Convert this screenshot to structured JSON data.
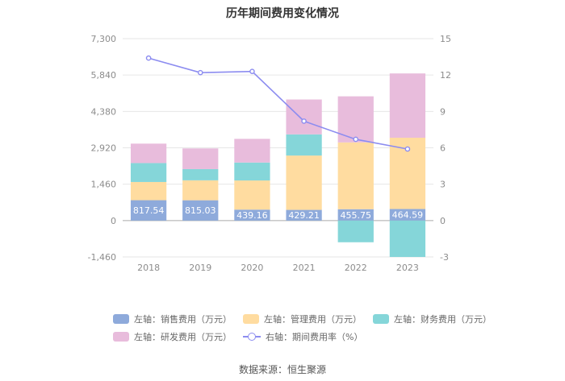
{
  "title": "历年期间费用变化情况",
  "source": "数据来源：恒生聚源",
  "chart_data": {
    "type": "bar",
    "stacked": true,
    "categories": [
      "2018",
      "2019",
      "2020",
      "2021",
      "2022",
      "2023"
    ],
    "left_axis": {
      "ticks": [
        -1460,
        0,
        1460,
        2920,
        4380,
        5840,
        7300
      ],
      "tick_labels": [
        "-1,460",
        "0",
        "1,460",
        "2,920",
        "4,380",
        "5,840",
        "7,300"
      ],
      "ylim": [
        -1460,
        7300
      ]
    },
    "right_axis": {
      "ticks": [
        -3,
        0,
        3,
        6,
        9,
        12,
        15
      ],
      "tick_labels": [
        "-3",
        "0",
        "3",
        "6",
        "9",
        "12",
        "15"
      ],
      "ylim": [
        -3,
        15
      ]
    },
    "series": [
      {
        "name": "左轴：销售费用（万元）",
        "axis": "left",
        "color": "#8eaadb",
        "values": [
          817.54,
          815.03,
          439.16,
          429.21,
          455.75,
          464.59
        ],
        "labels": [
          "817.54",
          "815.03",
          "439.16",
          "429.21",
          "455.75",
          "464.59"
        ]
      },
      {
        "name": "左轴：管理费用（万元）",
        "axis": "left",
        "color": "#ffdca0",
        "values": [
          730,
          800,
          1170,
          2180,
          2680,
          2860
        ]
      },
      {
        "name": "左轴：财务费用（万元）",
        "axis": "left",
        "color": "#85d6d9",
        "values": [
          760,
          450,
          720,
          850,
          -870,
          -1460
        ]
      },
      {
        "name": "左轴：研发费用（万元）",
        "axis": "left",
        "color": "#e8bcdc",
        "values": [
          780,
          830,
          950,
          1400,
          1850,
          2580
        ]
      },
      {
        "name": "右轴：期间费用率（%）",
        "axis": "right",
        "type": "line",
        "color": "#8c8cf0",
        "values": [
          13.4,
          12.2,
          12.3,
          8.2,
          6.7,
          5.9
        ]
      }
    ]
  }
}
